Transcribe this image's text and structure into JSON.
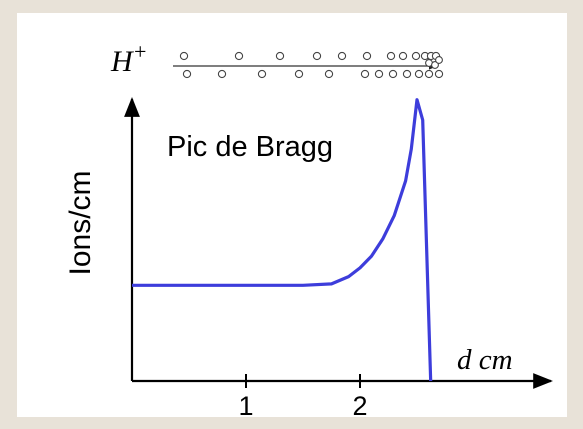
{
  "chart_data": {
    "type": "line",
    "title": "",
    "xlabel": "d cm",
    "ylabel": "Ions/cm",
    "xlim": [
      0,
      3.5
    ],
    "ylim": [
      0,
      1
    ],
    "xticks": [
      1,
      2
    ],
    "annotation": "Pic de Bragg",
    "beam_label": "H+",
    "beam_ion": "H",
    "beam_charge": "+",
    "line_color": "#3d3ddb",
    "x": [
      0,
      0.5,
      1.0,
      1.5,
      1.75,
      1.9,
      2.0,
      2.1,
      2.2,
      2.3,
      2.4,
      2.45,
      2.5,
      2.55,
      2.62
    ],
    "values": [
      0.33,
      0.33,
      0.33,
      0.33,
      0.335,
      0.36,
      0.39,
      0.43,
      0.49,
      0.57,
      0.69,
      0.8,
      0.97,
      0.9,
      0.0
    ]
  }
}
